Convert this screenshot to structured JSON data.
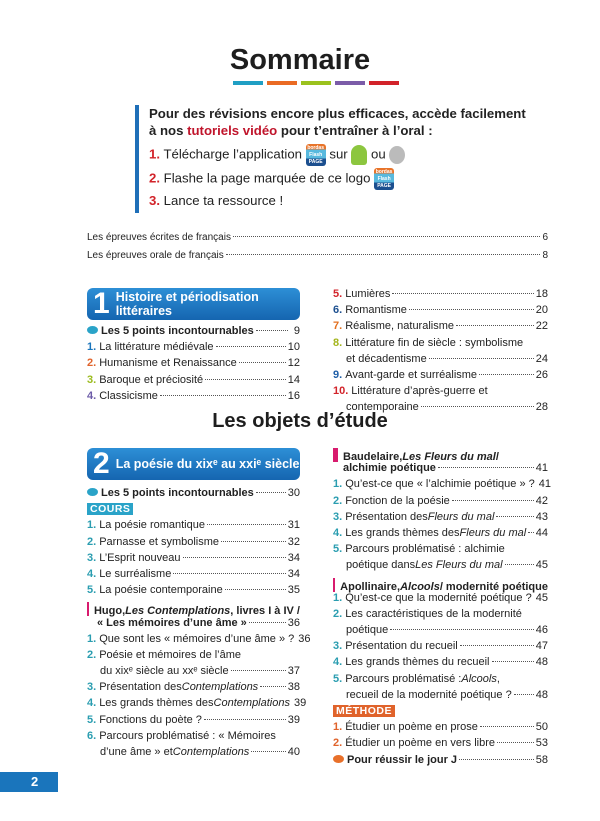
{
  "title": "Sommaire",
  "color_bars": [
    "#1f9fc4",
    "#ea6b24",
    "#9bc21e",
    "#7b5ca8",
    "#d2232a"
  ],
  "intro": {
    "line1": "Pour des révisions encore plus efficaces, accède facilement",
    "line2_pre": "à nos ",
    "line2_red": "tutoriels vidéo",
    "line2_post": " pour t’entraîner à l’oral :",
    "step1_num": "1.",
    "step1_text": "Télécharge l’application",
    "step1_sur": "sur",
    "step1_ou": "ou",
    "step2_num": "2.",
    "step2_text": "Flashe la page marquée de ce logo",
    "step3_num": "3.",
    "step3_text": "Lance ta ressource !",
    "logo_text": "bordas Flash PAGE",
    "icons": [
      "flashpage-logo",
      "android-icon",
      "apple-icon"
    ]
  },
  "top_rows": [
    {
      "text": "Les épreuves écrites de français",
      "page": "6"
    },
    {
      "text": "Les épreuves orale de français",
      "page": "8"
    }
  ],
  "section1": {
    "number": "1",
    "title_l1": "Histoire et périodisation",
    "title_l2": "littéraires"
  },
  "section2": {
    "number": "2",
    "title": "La poésie du xixᵉ au xxiᵉ siècle"
  },
  "subtitle": "Les objets d’étude",
  "columns": {
    "s1_left": [
      {
        "type": "point",
        "color": "#2aa3c8",
        "lines": [
          [
            {
              "t": "Les 5 points incontournables"
            }
          ]
        ],
        "page": "9"
      },
      {
        "num": "1.",
        "color": "#1a75bc",
        "lines": [
          [
            {
              "t": "La littérature médiévale"
            }
          ]
        ],
        "page": "10"
      },
      {
        "num": "2.",
        "color": "#e0632b",
        "lines": [
          [
            {
              "t": "Humanisme et Renaissance"
            }
          ]
        ],
        "page": "12"
      },
      {
        "num": "3.",
        "color": "#9bbb1f",
        "lines": [
          [
            {
              "t": "Baroque et préciosité"
            }
          ]
        ],
        "page": "14"
      },
      {
        "num": "4.",
        "color": "#6c5ba8",
        "lines": [
          [
            {
              "t": "Classicisme"
            }
          ]
        ],
        "page": "16"
      }
    ],
    "s1_right": [
      {
        "num": "5.",
        "color": "#d2232a",
        "lines": [
          [
            {
              "t": "Lumières"
            }
          ]
        ],
        "page": "18"
      },
      {
        "num": "6.",
        "color": "#1c4f8f",
        "lines": [
          [
            {
              "t": "Romantisme"
            }
          ]
        ],
        "page": "20"
      },
      {
        "num": "7.",
        "color": "#e36f1e",
        "lines": [
          [
            {
              "t": "Réalisme, naturalisme"
            }
          ]
        ],
        "page": "22"
      },
      {
        "num": "8.",
        "color": "#a3b51c",
        "lines": [
          [
            {
              "t": "Littérature fin de siècle : symbolisme"
            }
          ],
          [
            {
              "t": "et décadentisme"
            }
          ]
        ],
        "page": "24"
      },
      {
        "num": "9.",
        "color": "#1f5fa8",
        "lines": [
          [
            {
              "t": "Avant-garde et surréalisme"
            }
          ]
        ],
        "page": "26"
      },
      {
        "num": "10.",
        "color": "#d2232a",
        "lines": [
          [
            {
              "t": "Littérature d’après-guerre et"
            }
          ],
          [
            {
              "t": "contemporaine"
            }
          ]
        ],
        "page": "28"
      }
    ],
    "s2_left": [
      {
        "type": "point",
        "color": "#2aa3c8",
        "lines": [
          [
            {
              "t": "Les 5 points incontournables"
            }
          ]
        ],
        "page": "30"
      },
      {
        "type": "badge",
        "color": "#2aa3c8",
        "label": "COURS"
      },
      {
        "num": "1.",
        "color": "#2a9db0",
        "lines": [
          [
            {
              "t": "La poésie romantique"
            }
          ]
        ],
        "page": "31"
      },
      {
        "num": "2.",
        "color": "#2a9db0",
        "lines": [
          [
            {
              "t": "Parnasse et symbolisme"
            }
          ]
        ],
        "page": "32"
      },
      {
        "num": "3.",
        "color": "#2a9db0",
        "lines": [
          [
            {
              "t": "L’Esprit nouveau"
            }
          ]
        ],
        "page": "34"
      },
      {
        "num": "4.",
        "color": "#2a9db0",
        "lines": [
          [
            {
              "t": "Le surréalisme"
            }
          ]
        ],
        "page": "34"
      },
      {
        "num": "5.",
        "color": "#2a9db0",
        "lines": [
          [
            {
              "t": "La poésie contemporaine"
            }
          ]
        ],
        "page": "35"
      },
      {
        "type": "heading",
        "lines": [
          [
            {
              "t": "Hugo, "
            },
            {
              "t": "Les Contemplations",
              "i": true
            },
            {
              "t": ", livres I à IV /"
            }
          ],
          [
            {
              "t": "« Les mémoires d’une âme »"
            }
          ]
        ],
        "page": "36"
      },
      {
        "num": "1.",
        "color": "#2a9db0",
        "lines": [
          [
            {
              "t": "Que sont les « mémoires d’une âme » ?"
            }
          ]
        ],
        "page": "36",
        "noleader": true
      },
      {
        "num": "2.",
        "color": "#2a9db0",
        "lines": [
          [
            {
              "t": "Poésie et mémoires de l’âme"
            }
          ],
          [
            {
              "t": "du xixᵉ siècle au xxᵉ siècle"
            }
          ]
        ],
        "page": "37"
      },
      {
        "num": "3.",
        "color": "#2a9db0",
        "lines": [
          [
            {
              "t": "Présentation des "
            },
            {
              "t": "Contemplations",
              "i": true
            }
          ]
        ],
        "page": "38"
      },
      {
        "num": "4.",
        "color": "#2a9db0",
        "lines": [
          [
            {
              "t": "Les grands thèmes des "
            },
            {
              "t": "Contemplations",
              "i": true
            }
          ]
        ],
        "page": "39"
      },
      {
        "num": "5.",
        "color": "#2a9db0",
        "lines": [
          [
            {
              "t": "Fonctions du poète ?"
            }
          ]
        ],
        "page": "39"
      },
      {
        "num": "6.",
        "color": "#2a9db0",
        "lines": [
          [
            {
              "t": "Parcours problématisé : « Mémoires"
            }
          ],
          [
            {
              "t": "d’une âme » et "
            },
            {
              "t": "Contemplations",
              "i": true
            }
          ]
        ],
        "page": "40"
      }
    ],
    "s2_right": [
      {
        "type": "heading",
        "lines": [
          [
            {
              "t": "Baudelaire, "
            },
            {
              "t": "Les Fleurs du mal",
              "i": true
            },
            {
              "t": " /"
            }
          ],
          [
            {
              "t": "alchimie poétique"
            }
          ]
        ],
        "page": "41"
      },
      {
        "num": "1.",
        "color": "#2a9db0",
        "lines": [
          [
            {
              "t": "Qu’est-ce que « l’alchimie poétique » ?"
            }
          ]
        ],
        "page": "41",
        "noleader": true
      },
      {
        "num": "2.",
        "color": "#2a9db0",
        "lines": [
          [
            {
              "t": "Fonction de la poésie"
            }
          ]
        ],
        "page": "42"
      },
      {
        "num": "3.",
        "color": "#2a9db0",
        "lines": [
          [
            {
              "t": "Présentation des "
            },
            {
              "t": "Fleurs du mal",
              "i": true
            }
          ]
        ],
        "page": "43"
      },
      {
        "num": "4.",
        "color": "#2a9db0",
        "lines": [
          [
            {
              "t": "Les grands thèmes des "
            },
            {
              "t": "Fleurs du mal",
              "i": true
            }
          ]
        ],
        "page": "44"
      },
      {
        "num": "5.",
        "color": "#2a9db0",
        "lines": [
          [
            {
              "t": "Parcours problématisé : alchimie"
            }
          ],
          [
            {
              "t": "poétique dans "
            },
            {
              "t": "Les Fleurs du mal",
              "i": true
            }
          ]
        ],
        "page": "45"
      },
      {
        "type": "heading",
        "lines": [
          [
            {
              "t": "Apollinaire, "
            },
            {
              "t": "Alcools",
              "i": true
            },
            {
              "t": " / modernité poétique"
            }
          ]
        ],
        "noleader": true
      },
      {
        "num": "1.",
        "color": "#2a9db0",
        "lines": [
          [
            {
              "t": "Qu’est-ce que la modernité poétique ?"
            }
          ]
        ],
        "page": "45"
      },
      {
        "num": "2.",
        "color": "#2a9db0",
        "lines": [
          [
            {
              "t": "Les caractéristiques de la modernité"
            }
          ],
          [
            {
              "t": "poétique"
            }
          ]
        ],
        "page": "46"
      },
      {
        "num": "3.",
        "color": "#2a9db0",
        "lines": [
          [
            {
              "t": "Présentation du recueil"
            }
          ]
        ],
        "page": "47"
      },
      {
        "num": "4.",
        "color": "#2a9db0",
        "lines": [
          [
            {
              "t": "Les grands thèmes du recueil"
            }
          ]
        ],
        "page": "48"
      },
      {
        "num": "5.",
        "color": "#2a9db0",
        "lines": [
          [
            {
              "t": "Parcours problématisé : "
            },
            {
              "t": "Alcools",
              "i": true
            },
            {
              "t": ","
            }
          ],
          [
            {
              "t": "recueil de la modernité poétique ?"
            }
          ]
        ],
        "page": "48"
      },
      {
        "type": "badge",
        "color": "#e0632b",
        "label": "MÉTHODE"
      },
      {
        "num": "1.",
        "color": "#e0632b",
        "lines": [
          [
            {
              "t": "Étudier un poème en prose"
            }
          ]
        ],
        "page": "50"
      },
      {
        "num": "2.",
        "color": "#e0632b",
        "lines": [
          [
            {
              "t": "Étudier un poème en vers libre"
            }
          ]
        ],
        "page": "53"
      },
      {
        "type": "point",
        "color": "#e8702a",
        "lines": [
          [
            {
              "t": "Pour réussir le jour J"
            }
          ]
        ],
        "page": "58"
      }
    ]
  },
  "footer": {
    "page_number": "2",
    "color": "#1a75bc"
  }
}
